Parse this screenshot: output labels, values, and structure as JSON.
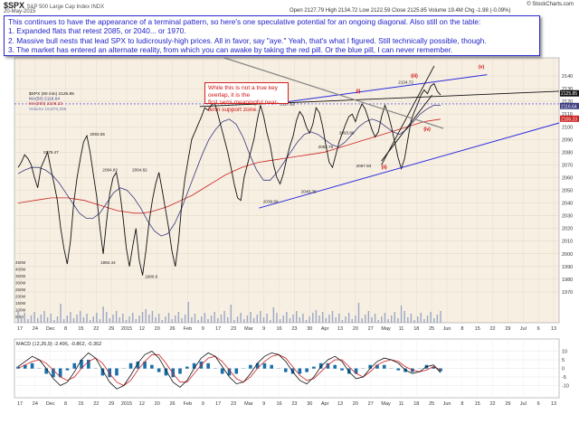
{
  "header": {
    "symbol": "$SPX",
    "description": "S&P 500 Large Cap Index INDX",
    "date": "20-May-2015",
    "quote": "Open 2127.79  High 2134.72  Low 2122.59  Close 2125.85  Volume 19.4M  Chg -1.98 (-0.09%)",
    "logo": "© StockCharts.com"
  },
  "note": {
    "lines": [
      "This continues to have the appearance of a terminal pattern, so here's one speculative potential for an ongoing diagonal.  Also still on the table:",
      "1.  Expanded flats that retest 2085, or 2040... or 1970.",
      "2.  Massive bull nests that lead SPX to ludicrously-high prices.  All in favor, say \"aye.\"  Yeah, that's what I figured.  Still technically possible, though.",
      "3.  The market has entered an alternate reality, from which you can awake by taking the red pill.  Or the blue pill, I can never remember."
    ]
  },
  "callout": {
    "lines": [
      "While this is not a true key overlap, it is the",
      "first semi-meaningful near-term support zone."
    ]
  },
  "colors": {
    "price": "#111111",
    "ma50": "#3a3a80",
    "ma200": "#cc2222",
    "trendline": "#2a2ae0",
    "wave": "#cc0000",
    "macd_hist": "#1a6fa8",
    "price_panel_bg": "#f7efe2",
    "macd_panel_bg": "#ffffff"
  },
  "chart_data": [
    {
      "type": "line",
      "legend": [
        "$SPX (60 min) 2125.85",
        "MA(50) 2116.64",
        "MA(200) 2106.23",
        "Volume 19,876,206"
      ],
      "ylim": [
        1950,
        2150
      ],
      "yticks": [
        2140,
        2130,
        2120,
        2110,
        2100,
        2090,
        2080,
        2070,
        2060,
        2050,
        2040,
        2030,
        2020,
        2010,
        2000,
        1990,
        1980,
        1970
      ],
      "last_value": "2125.85",
      "ma50_value": "2116.64",
      "ma200_value": "2106.23",
      "x_labels": [
        "17",
        "24",
        "Dec",
        "8",
        "15",
        "22",
        "29",
        "2015",
        "12",
        "20",
        "26",
        "Feb",
        "9",
        "17",
        "23",
        "Mar",
        "9",
        "16",
        "23",
        "30",
        "Apr",
        "13",
        "20",
        "27",
        "May",
        "11",
        "18",
        "25",
        "Jun",
        "8",
        "15",
        "22",
        "29",
        "Jul",
        "6",
        "13"
      ],
      "volume_labels": [
        "450M",
        "400M",
        "350M",
        "300M",
        "250M",
        "200M",
        "150M",
        "100M",
        "50M"
      ],
      "price_labels": [
        {
          "text": "2079.47",
          "x": 0.06,
          "y": 2079
        },
        {
          "text": "2093.55",
          "x": 0.17,
          "y": 2093
        },
        {
          "text": "2064.82",
          "x": 0.2,
          "y": 2065
        },
        {
          "text": "2064.82",
          "x": 0.27,
          "y": 2065
        },
        {
          "text": "1992.44",
          "x": 0.195,
          "y": 1992
        },
        {
          "text": "1980.9",
          "x": 0.3,
          "y": 1981
        },
        {
          "text": "2119.59",
          "x": 0.46,
          "y": 2119
        },
        {
          "text": "2117.52",
          "x": 0.62,
          "y": 2117
        },
        {
          "text": "2039.69",
          "x": 0.58,
          "y": 2040
        },
        {
          "text": "2048.38",
          "x": 0.67,
          "y": 2048
        },
        {
          "text": "2082.76",
          "x": 0.71,
          "y": 2083
        },
        {
          "text": "2093.88",
          "x": 0.76,
          "y": 2094
        },
        {
          "text": "2067.93",
          "x": 0.8,
          "y": 2068
        },
        {
          "text": "2134.72",
          "x": 0.9,
          "y": 2134
        }
      ],
      "wave_labels": [
        {
          "text": "(i)",
          "x": 0.8,
          "y": 2127
        },
        {
          "text": "(ii)",
          "x": 0.86,
          "y": 2067
        },
        {
          "text": "(iii)",
          "x": 0.93,
          "y": 2139
        },
        {
          "text": "(iv)",
          "x": 0.96,
          "y": 2097
        },
        {
          "text": "(v)",
          "x": 1.09,
          "y": 2146
        }
      ],
      "series": [
        {
          "name": "$SPX (60 min)",
          "values": [
            2068,
            2072,
            2078,
            2075,
            2070,
            2060,
            2052,
            2068,
            2074,
            2080,
            2067,
            2055,
            2042,
            2020,
            2004,
            1992,
            2010,
            2040,
            2060,
            2075,
            2088,
            2093,
            2080,
            2062,
            2045,
            2020,
            2000,
            2025,
            2048,
            2060,
            2064,
            2050,
            2030,
            2005,
            1990,
            2006,
            2020,
            1995,
            1983,
            2002,
            2025,
            2042,
            2055,
            2064,
            2050,
            2035,
            2020,
            2002,
            1990,
            2010,
            2040,
            2060,
            2075,
            2090,
            2096,
            2102,
            2108,
            2115,
            2113,
            2117,
            2119,
            2110,
            2100,
            2090,
            2080,
            2068,
            2055,
            2044,
            2042,
            2060,
            2070,
            2080,
            2090,
            2105,
            2117,
            2108,
            2095,
            2085,
            2070,
            2060,
            2055,
            2063,
            2075,
            2085,
            2093,
            2105,
            2112,
            2108,
            2100,
            2095,
            2102,
            2115,
            2111,
            2100,
            2085,
            2072,
            2068,
            2078,
            2088,
            2095,
            2102,
            2108,
            2110,
            2104,
            2112,
            2118,
            2114,
            2106,
            2098,
            2092,
            2096,
            2108,
            2117,
            2110,
            2100,
            2088,
            2076,
            2067,
            2075,
            2090,
            2105,
            2112,
            2118,
            2125,
            2129,
            2126,
            2132,
            2134,
            2128,
            2125
          ]
        },
        {
          "name": "MA(50)",
          "values": [
            2063,
            2066,
            2068,
            2068,
            2066,
            2062,
            2056,
            2048,
            2040,
            2032,
            2028,
            2028,
            2032,
            2040,
            2048,
            2052,
            2050,
            2044,
            2036,
            2026,
            2018,
            2014,
            2016,
            2024,
            2036,
            2050,
            2064,
            2078,
            2090,
            2098,
            2104,
            2106,
            2102,
            2092,
            2078,
            2066,
            2058,
            2058,
            2064,
            2072,
            2080,
            2088,
            2094,
            2096,
            2094,
            2090,
            2086,
            2084,
            2088,
            2094,
            2100,
            2104,
            2106,
            2104,
            2100,
            2096,
            2094,
            2098,
            2104,
            2110,
            2114,
            2117,
            2117
          ]
        },
        {
          "name": "MA(200)",
          "values": [
            2040,
            2041,
            2042,
            2043,
            2044,
            2044,
            2044,
            2043,
            2042,
            2040,
            2038,
            2036,
            2034,
            2033,
            2032,
            2032,
            2033,
            2035,
            2037,
            2040,
            2043,
            2046,
            2050,
            2054,
            2058,
            2062,
            2065,
            2068,
            2070,
            2072,
            2073,
            2074,
            2075,
            2076,
            2077,
            2078,
            2079,
            2080,
            2082,
            2084,
            2086,
            2088,
            2090,
            2092,
            2094,
            2096,
            2098,
            2100,
            2102,
            2104,
            2105,
            2106
          ]
        }
      ]
    },
    {
      "type": "area",
      "title": "MACD (12,26,9) -2.496, -0.862, -0.362",
      "ylim": [
        -15,
        15
      ],
      "yticks": [
        10,
        5,
        0,
        -5,
        -10
      ],
      "series": [
        {
          "name": "MACD",
          "values": [
            1,
            4,
            7,
            5,
            0,
            -6,
            -10,
            -8,
            -2,
            5,
            9,
            6,
            -1,
            -8,
            -12,
            -10,
            -4,
            3,
            8,
            10,
            6,
            -1,
            -8,
            -11,
            -7,
            0,
            6,
            9,
            7,
            1,
            -5,
            -9,
            -8,
            -3,
            3,
            7,
            9,
            8,
            4,
            -2,
            -7,
            -9,
            -5,
            1,
            5,
            7,
            4,
            -2,
            -6,
            -5,
            0,
            4,
            6,
            5,
            3,
            -1,
            -3,
            -2,
            1,
            2,
            -2.5
          ]
        },
        {
          "name": "Signal",
          "values": [
            0,
            2,
            4,
            5,
            3,
            -1,
            -5,
            -7,
            -5,
            0,
            4,
            6,
            3,
            -3,
            -8,
            -10,
            -7,
            -1,
            4,
            8,
            8,
            3,
            -3,
            -8,
            -8,
            -3,
            2,
            6,
            7,
            4,
            -1,
            -6,
            -8,
            -5,
            0,
            4,
            7,
            8,
            6,
            1,
            -4,
            -7,
            -6,
            -2,
            2,
            5,
            5,
            1,
            -3,
            -5,
            -2,
            2,
            4,
            5,
            4,
            1,
            -1,
            -2,
            -1,
            1,
            -0.9
          ]
        }
      ]
    }
  ]
}
